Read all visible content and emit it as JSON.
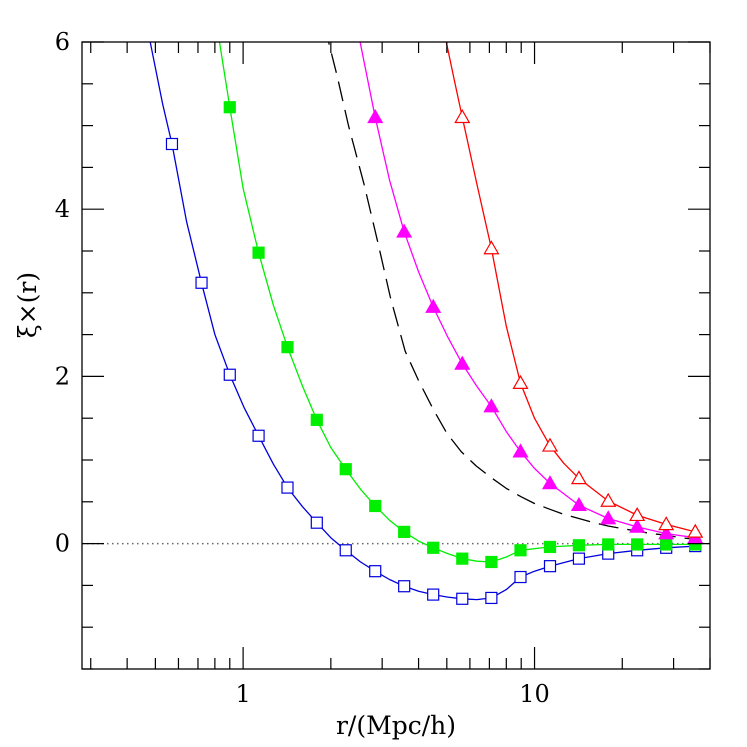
{
  "chart_data": {
    "type": "line",
    "xlabel": "r/(Mpc/h)",
    "ylabel": "ξ×(r)",
    "xscale": "log",
    "xlim": [
      0.28,
      40
    ],
    "ylim": [
      -1.5,
      6
    ],
    "x_ticks": [
      1,
      10
    ],
    "x_tick_labels": [
      "1",
      "10"
    ],
    "y_ticks": [
      0,
      2,
      4,
      6
    ],
    "y_tick_labels": [
      "0",
      "2",
      "4",
      "6"
    ],
    "reference_line": {
      "y": 0,
      "style": "dotted",
      "color": "#666666"
    },
    "grid": false,
    "series": [
      {
        "marker": "open-square",
        "color": "#0000dd",
        "x": [
          0.57,
          0.72,
          0.9,
          1.13,
          1.42,
          1.79,
          2.25,
          2.84,
          3.57,
          4.49,
          5.65,
          7.11,
          8.95,
          11.3,
          14.2,
          17.9,
          22.5,
          28.3,
          35.6
        ],
        "y": [
          4.78,
          3.12,
          2.02,
          1.29,
          0.67,
          0.25,
          -0.08,
          -0.33,
          -0.51,
          -0.61,
          -0.66,
          -0.65,
          -0.4,
          -0.27,
          -0.18,
          -0.12,
          -0.08,
          -0.05,
          -0.03
        ],
        "curve_x": [
          0.48,
          0.53,
          0.57,
          0.64,
          0.72,
          0.8,
          0.9,
          1.01,
          1.13,
          1.27,
          1.42,
          1.6,
          1.79,
          2.0,
          2.25,
          2.53,
          2.84,
          3.18,
          3.57,
          4.0,
          4.49,
          5.04,
          5.65,
          6.34,
          7.11,
          8.0,
          8.95,
          10.0,
          11.3,
          14.2,
          17.9,
          22.5,
          28.3,
          35.6
        ],
        "curve_y": [
          6.0,
          5.25,
          4.78,
          3.85,
          3.12,
          2.5,
          2.02,
          1.62,
          1.29,
          0.95,
          0.67,
          0.44,
          0.25,
          0.07,
          -0.08,
          -0.22,
          -0.33,
          -0.43,
          -0.51,
          -0.57,
          -0.61,
          -0.64,
          -0.66,
          -0.67,
          -0.65,
          -0.55,
          -0.4,
          -0.33,
          -0.27,
          -0.18,
          -0.12,
          -0.08,
          -0.05,
          -0.03
        ]
      },
      {
        "marker": "filled-square",
        "color": "#00ee00",
        "x": [
          0.9,
          1.13,
          1.42,
          1.79,
          2.25,
          2.84,
          3.57,
          4.49,
          5.65,
          7.11,
          8.95,
          11.3,
          14.2,
          17.9,
          22.5,
          28.3,
          35.6
        ],
        "y": [
          5.22,
          3.48,
          2.35,
          1.48,
          0.89,
          0.45,
          0.14,
          -0.05,
          -0.18,
          -0.22,
          -0.08,
          -0.04,
          -0.02,
          -0.01,
          -0.01,
          -0.01,
          -0.01
        ],
        "curve_x": [
          0.83,
          0.9,
          1.0,
          1.13,
          1.27,
          1.42,
          1.6,
          1.79,
          2.0,
          2.25,
          2.53,
          2.84,
          3.18,
          3.57,
          4.0,
          4.49,
          5.04,
          5.65,
          6.34,
          7.11,
          8.0,
          8.95,
          11.3,
          14.2,
          17.9,
          22.5,
          28.3,
          35.6
        ],
        "curve_y": [
          6.0,
          5.22,
          4.25,
          3.48,
          2.85,
          2.35,
          1.88,
          1.48,
          1.15,
          0.89,
          0.65,
          0.45,
          0.28,
          0.14,
          0.03,
          -0.05,
          -0.12,
          -0.18,
          -0.21,
          -0.22,
          -0.16,
          -0.08,
          -0.04,
          -0.02,
          -0.01,
          -0.01,
          -0.01,
          -0.01
        ]
      },
      {
        "marker": "none",
        "color": "#000000",
        "dash": "long-dash",
        "curve_x": [
          1.9,
          2.1,
          2.3,
          2.6,
          2.9,
          3.2,
          3.6,
          4.0,
          4.5,
          5.0,
          5.6,
          6.3,
          7.1,
          8.0,
          9.0,
          10.0,
          11.3,
          12.6,
          14.2,
          16.0,
          17.9,
          20.0,
          22.5,
          25.2,
          28.3,
          31.7,
          35.6
        ],
        "curve_y": [
          6.2,
          5.6,
          5.0,
          4.3,
          3.6,
          2.95,
          2.3,
          1.95,
          1.6,
          1.32,
          1.1,
          0.93,
          0.79,
          0.66,
          0.56,
          0.48,
          0.41,
          0.35,
          0.3,
          0.25,
          0.21,
          0.18,
          0.15,
          0.12,
          0.1,
          0.07,
          0.05
        ]
      },
      {
        "marker": "filled-triangle",
        "color": "#ff00ff",
        "x": [
          2.84,
          3.57,
          4.49,
          5.65,
          7.11,
          8.95,
          11.3,
          14.2,
          17.9,
          22.5,
          28.3,
          35.6
        ],
        "y": [
          5.1,
          3.73,
          2.83,
          2.15,
          1.64,
          1.1,
          0.72,
          0.46,
          0.3,
          0.2,
          0.12,
          0.07
        ],
        "curve_x": [
          2.52,
          2.84,
          3.18,
          3.57,
          4.0,
          4.49,
          5.04,
          5.65,
          6.34,
          7.11,
          8.0,
          8.95,
          10.0,
          11.3,
          14.2,
          17.9,
          22.5,
          28.3,
          35.6
        ],
        "curve_y": [
          6.0,
          5.1,
          4.35,
          3.73,
          3.25,
          2.83,
          2.47,
          2.15,
          1.88,
          1.64,
          1.34,
          1.1,
          0.9,
          0.72,
          0.46,
          0.3,
          0.2,
          0.12,
          0.07
        ]
      },
      {
        "marker": "open-triangle",
        "color": "#ff0000",
        "x": [
          5.65,
          7.11,
          8.95,
          11.3,
          14.2,
          17.9,
          22.5,
          28.3,
          35.6
        ],
        "y": [
          5.1,
          3.53,
          1.92,
          1.17,
          0.78,
          0.51,
          0.34,
          0.23,
          0.14
        ],
        "curve_x": [
          4.98,
          5.3,
          5.65,
          6.34,
          7.11,
          8.0,
          8.95,
          10.0,
          11.3,
          12.6,
          14.2,
          17.9,
          22.5,
          28.3,
          35.6
        ],
        "curve_y": [
          6.0,
          5.55,
          5.1,
          4.3,
          3.53,
          2.6,
          1.92,
          1.5,
          1.17,
          0.96,
          0.78,
          0.51,
          0.34,
          0.23,
          0.14
        ]
      }
    ]
  }
}
